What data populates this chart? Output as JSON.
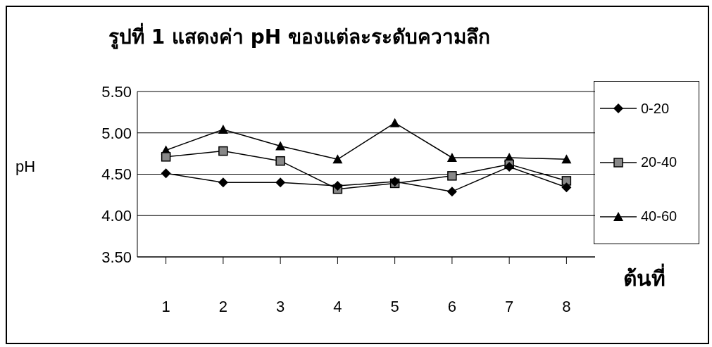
{
  "chart_data": {
    "type": "line",
    "title": "รูปที่ 1 แสดงค่า pH ของแต่ละระดับความลึก",
    "xlabel": "ต้นที่",
    "ylabel": "pH",
    "categories": [
      "1",
      "2",
      "3",
      "4",
      "5",
      "6",
      "7",
      "8"
    ],
    "series": [
      {
        "name": "0-20",
        "color": "#000000",
        "marker": "diamond",
        "values": [
          4.51,
          4.4,
          4.4,
          4.36,
          4.41,
          4.29,
          4.59,
          4.34
        ]
      },
      {
        "name": "20-40",
        "color": "#000000",
        "marker": "square",
        "values": [
          4.71,
          4.78,
          4.66,
          4.32,
          4.39,
          4.48,
          4.62,
          4.42
        ]
      },
      {
        "name": "40-60",
        "color": "#000000",
        "marker": "triangle",
        "values": [
          4.79,
          5.04,
          4.84,
          4.68,
          5.12,
          4.7,
          4.7,
          4.68
        ]
      }
    ],
    "ylim": [
      3.5,
      5.5
    ],
    "yticks": [
      {
        "value": 3.5,
        "label": "3.50"
      },
      {
        "value": 4,
        "label": "4.00"
      },
      {
        "value": 4.5,
        "label": "4.50"
      },
      {
        "value": 5,
        "label": "5.00"
      },
      {
        "value": 5.5,
        "label": "5.50"
      }
    ],
    "grid": "y",
    "legend": "right"
  }
}
